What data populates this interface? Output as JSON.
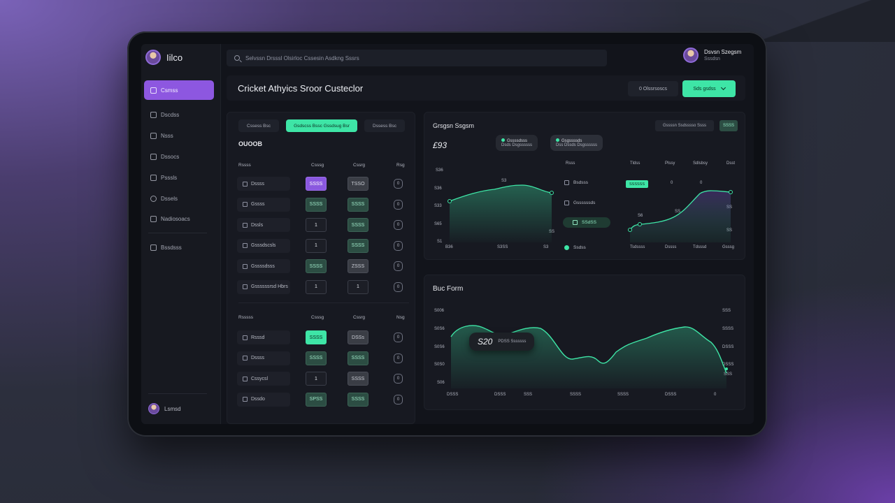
{
  "app": {
    "name": "Iilco"
  },
  "search": {
    "placeholder": "Selvssn Drsssl Olsirloc Cssesin Asdkng Sssrs"
  },
  "profile": {
    "name": "Dsvsn Szegsm",
    "role": "Sssdsn"
  },
  "sidebar": {
    "items": [
      {
        "label": "Csmss",
        "active": true
      },
      {
        "label": "Dscdss"
      },
      {
        "label": "Nsss"
      },
      {
        "label": "Dssocs"
      },
      {
        "label": "Psssls"
      },
      {
        "label": "Dssels"
      },
      {
        "label": "Nadiosoacs"
      },
      {
        "label": "Bssdsss"
      }
    ],
    "user": "Lsmsd"
  },
  "header": {
    "title": "Cricket Athyics Sroor Custeclor",
    "ghost_button": "0 Olssrsoscs",
    "accent_button": "Sds gsdss"
  },
  "left_panel": {
    "tabs": [
      "Cssess Bsc",
      "Gsdscss Bssc Gssdsug Bsr",
      "Dssess Bsc"
    ],
    "section_title": "OUOOB",
    "table1": {
      "headers": [
        "Rssss",
        "Csssg",
        "Cssrg",
        "Rsg"
      ],
      "rows": [
        {
          "name": "Dssss",
          "a": "SSSS",
          "a_style": "purple",
          "b": "TSSO",
          "b_style": "gray",
          "c": "0"
        },
        {
          "name": "Gssss",
          "a": "SSSS",
          "a_style": "green",
          "b": "SSSS",
          "b_style": "green",
          "c": "0"
        },
        {
          "name": "Dssls",
          "a": "1",
          "a_style": "plain",
          "b": "SSSS",
          "b_style": "green",
          "c": "0"
        },
        {
          "name": "Gsssdscsls",
          "a": "1",
          "a_style": "plain",
          "b": "SSSS",
          "b_style": "green",
          "c": "0"
        },
        {
          "name": "Gssssdsss",
          "a": "SSSS",
          "a_style": "green",
          "b": "ZSSS",
          "b_style": "gray",
          "c": "0"
        },
        {
          "name": "Gssssssrsd Hbrs",
          "a": "1",
          "a_style": "plain",
          "b": "1",
          "b_style": "plain",
          "c": "0"
        }
      ]
    },
    "table2": {
      "headers": [
        "Rsssss",
        "Csssg",
        "Cssrg",
        "Nsg"
      ],
      "rows": [
        {
          "name": "Rsssd",
          "a": "SSSS",
          "a_style": "bright",
          "b": "DSSs",
          "b_style": "gray",
          "c": "0"
        },
        {
          "name": "Dssss",
          "a": "SSSS",
          "a_style": "green",
          "b": "SSSS",
          "b_style": "green",
          "c": "0"
        },
        {
          "name": "Cssycsl",
          "a": "1",
          "a_style": "plain",
          "b": "SSSS",
          "b_style": "gray",
          "c": "0"
        },
        {
          "name": "Dssdo",
          "a": "SPSS",
          "a_style": "green",
          "b": "SSSS",
          "b_style": "green",
          "c": "0"
        }
      ]
    }
  },
  "top_chart": {
    "title": "Grsgsn Ssgsm",
    "value": "£93",
    "chips": [
      "Gssssn Ssdsssso Ssss",
      "SSSS"
    ],
    "tooltip1": {
      "line1": "Gssssdsss",
      "line2": "Dsds Dsgssssss"
    },
    "tooltip2": {
      "line1": "Gsgssssds",
      "line2": "Dss Dssds Dsgssssss"
    },
    "y_ticks": [
      "S36",
      "S36",
      "S33",
      "S65",
      "S1"
    ],
    "x_ticks_left": [
      "B36",
      "S3SS",
      "S3"
    ],
    "x_ticks_right": [
      "Tsdssss",
      "Dssss",
      "Tdsssd",
      "Gsssg"
    ],
    "left_point_label": "S3",
    "mini_table": {
      "headers": [
        "Rsss",
        "Tldss",
        "Plssy",
        "Sdlsbsy",
        "Dsst"
      ],
      "rows": [
        {
          "name": "Bsdsss",
          "badge": "SSSSSS",
          "v1": "0",
          "v2": "0"
        },
        {
          "name": "Gssssssds"
        },
        {
          "name": "SSdSS",
          "selected": true
        },
        {
          "name": "Ssdss"
        }
      ]
    },
    "point_labels": [
      "S6",
      "SS",
      "SS",
      "SS",
      "SS"
    ]
  },
  "bottom_chart": {
    "title": "Buc Form",
    "readout_value": "S20",
    "readout_label": "PDSS Sssssss",
    "y_ticks_left": [
      "S006",
      "S0S6",
      "S0S6",
      "S0S0",
      "S06"
    ],
    "y_ticks_right": [
      "SSS",
      "SSSS",
      "DSSS",
      "DSSS",
      "SSS"
    ],
    "x_ticks": [
      "DSSS",
      "DSSS",
      "SSS",
      "SSSS",
      "SSSS",
      "DSSS",
      "0"
    ]
  },
  "colors": {
    "accent": "#3ee5a6",
    "primary": "#8d57e0",
    "panel": "#171921",
    "background": "#12141b"
  }
}
